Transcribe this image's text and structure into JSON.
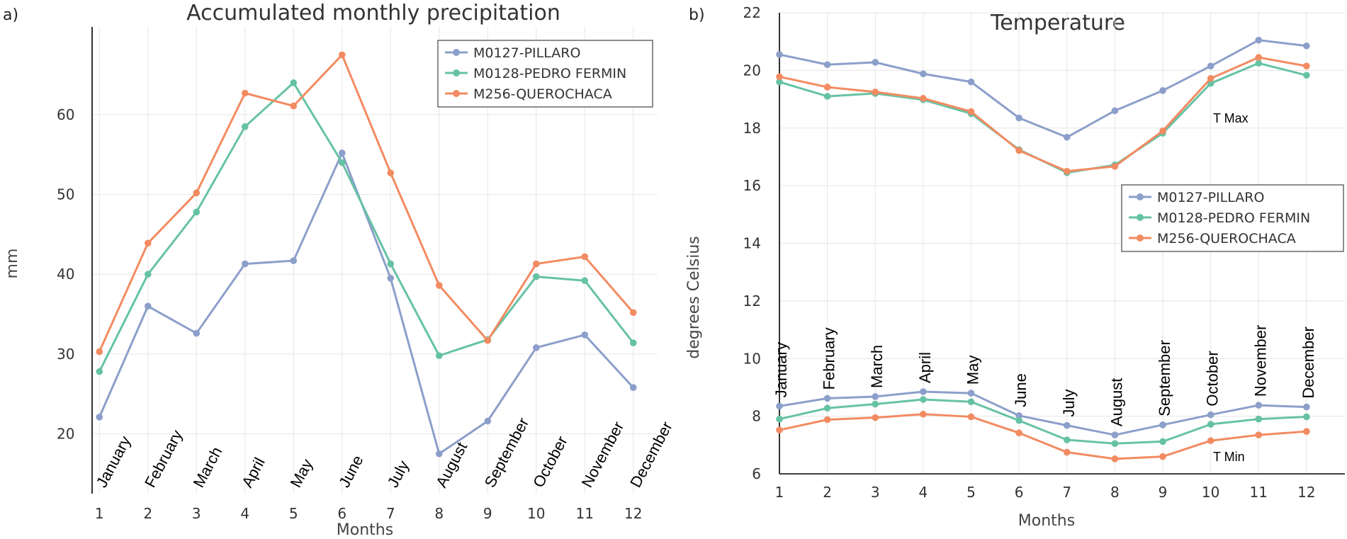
{
  "colors": {
    "pillaro": "#8c9fca",
    "pedro_fermin": "#66c2a5",
    "querochaca": "#f28b61",
    "grid": "#e6e6e6",
    "axis": "#000000"
  },
  "chart_data": [
    {
      "type": "line",
      "panel": "a)",
      "title": "Accumulated monthly precipitation",
      "xlabel": "Months",
      "ylabel": "mm",
      "x": [
        1,
        2,
        3,
        4,
        5,
        6,
        7,
        8,
        9,
        10,
        11,
        12
      ],
      "xlim": [
        0.85,
        12.5
      ],
      "ylim": [
        12.5,
        71
      ],
      "yticks": [
        20,
        30,
        40,
        50,
        60
      ],
      "grid": true,
      "legend_position": "top-right",
      "month_labels": [
        "January",
        "February",
        "March",
        "April",
        "May",
        "June",
        "July",
        "August",
        "September",
        "October",
        "November",
        "December"
      ],
      "series": [
        {
          "name": "M0127-PILLARO",
          "color_key": "pillaro",
          "values": [
            22.1,
            36.0,
            32.6,
            41.3,
            41.7,
            55.2,
            39.5,
            17.5,
            21.6,
            30.8,
            32.4,
            25.8
          ]
        },
        {
          "name": "M0128-PEDRO FERMIN",
          "color_key": "pedro_fermin",
          "values": [
            27.8,
            40.0,
            47.8,
            58.5,
            64.0,
            54.0,
            41.3,
            29.8,
            31.8,
            39.7,
            39.2,
            31.4
          ]
        },
        {
          "name": "M256-QUEROCHACA",
          "color_key": "querochaca",
          "values": [
            30.3,
            43.9,
            50.2,
            62.7,
            61.1,
            67.5,
            52.7,
            38.6,
            31.7,
            41.3,
            42.2,
            35.2
          ]
        }
      ]
    },
    {
      "type": "line",
      "panel": "b)",
      "title": "Temperature",
      "xlabel": "Months",
      "ylabel": "degrees Celsius",
      "x": [
        1,
        2,
        3,
        4,
        5,
        6,
        7,
        8,
        9,
        10,
        11,
        12
      ],
      "xlim": [
        1,
        12.8
      ],
      "ylim": [
        6,
        22
      ],
      "yticks": [
        6,
        8,
        10,
        12,
        14,
        16,
        18,
        20,
        22
      ],
      "grid": true,
      "legend_position": "center-right",
      "annotations": [
        "T Max",
        "T Min"
      ],
      "month_labels": [
        "January",
        "February",
        "March",
        "April",
        "May",
        "June",
        "July",
        "August",
        "September",
        "October",
        "November",
        "December"
      ],
      "series": [
        {
          "name": "M0127-PILLARO",
          "color_key": "pillaro",
          "tmax": [
            20.55,
            20.2,
            20.28,
            19.88,
            19.6,
            18.35,
            17.68,
            18.6,
            19.3,
            20.15,
            21.05,
            20.85
          ],
          "tmin": [
            8.35,
            8.62,
            8.68,
            8.85,
            8.8,
            8.02,
            7.68,
            7.35,
            7.7,
            8.05,
            8.38,
            8.32
          ]
        },
        {
          "name": "M0128-PEDRO FERMIN",
          "color_key": "pedro_fermin",
          "tmax": [
            19.6,
            19.1,
            19.2,
            18.98,
            18.5,
            17.25,
            16.45,
            16.72,
            17.82,
            19.55,
            20.25,
            19.83
          ],
          "tmin": [
            7.9,
            8.28,
            8.42,
            8.58,
            8.5,
            7.85,
            7.18,
            7.05,
            7.12,
            7.72,
            7.9,
            7.98
          ]
        },
        {
          "name": "M256-QUEROCHACA",
          "color_key": "querochaca",
          "tmax": [
            19.78,
            19.42,
            19.25,
            19.03,
            18.57,
            17.22,
            16.5,
            16.67,
            17.9,
            19.72,
            20.45,
            20.15
          ],
          "tmin": [
            7.52,
            7.88,
            7.95,
            8.07,
            7.98,
            7.42,
            6.75,
            6.52,
            6.6,
            7.15,
            7.35,
            7.47
          ]
        }
      ]
    }
  ]
}
